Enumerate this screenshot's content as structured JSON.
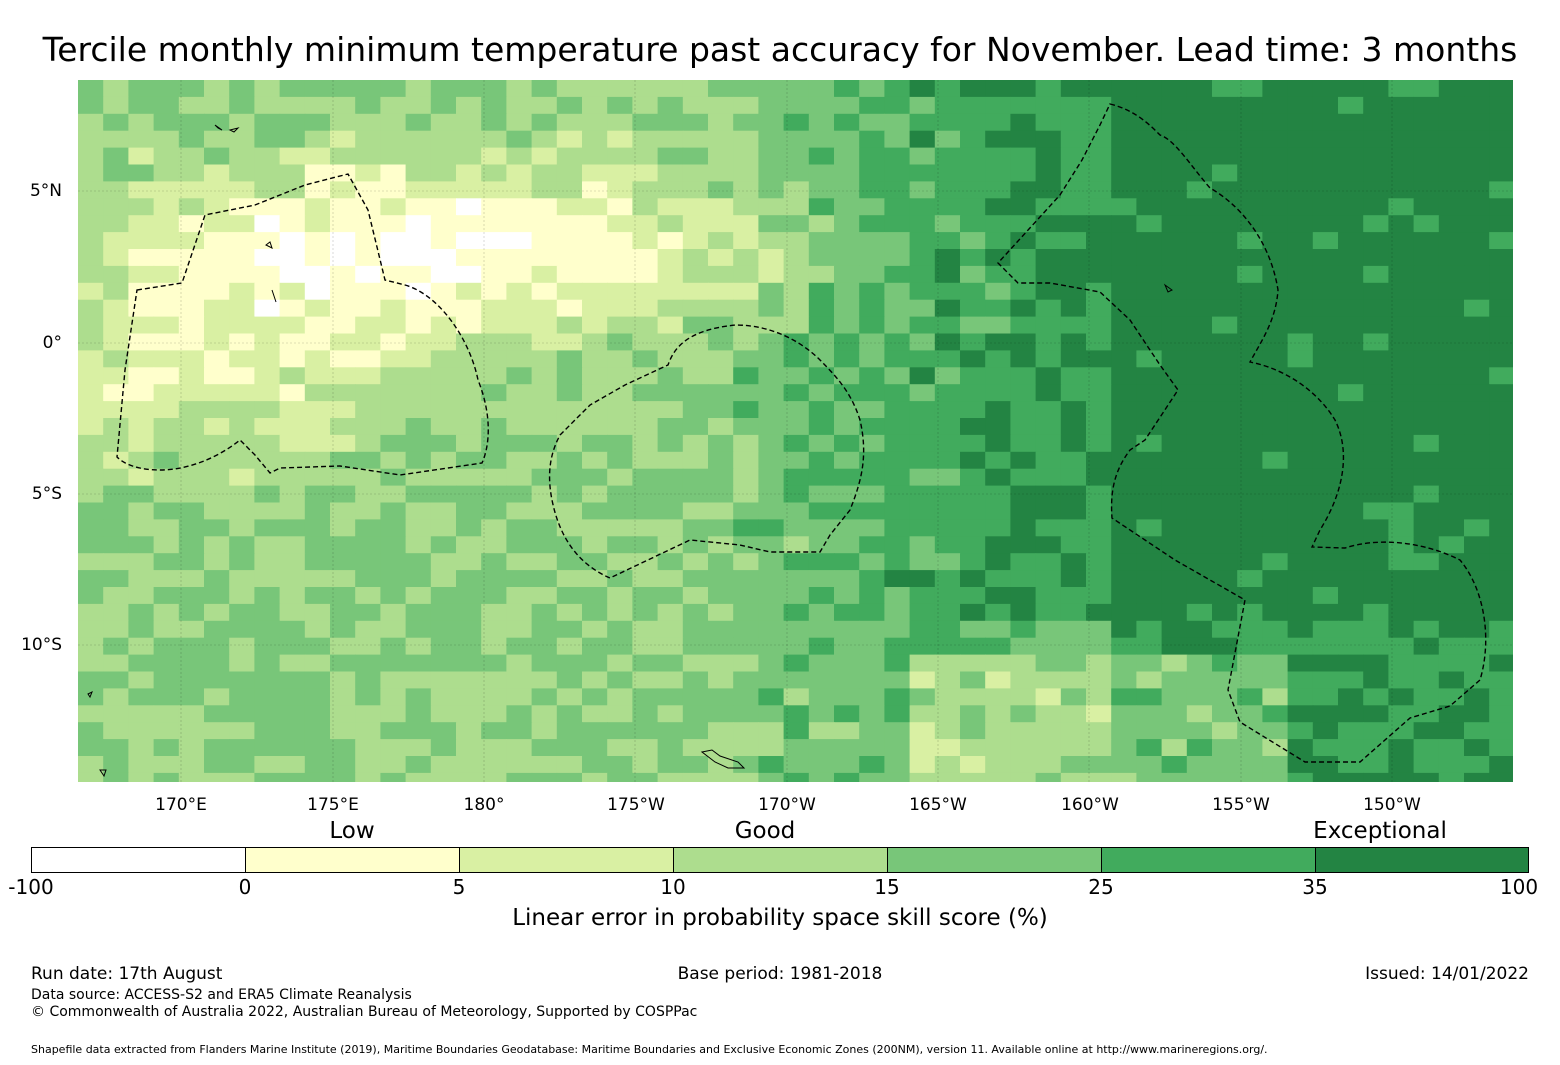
{
  "title": "Tercile monthly minimum temperature past accuracy for November. Lead time: 3 months",
  "map": {
    "lat_labels": [
      "5°N",
      "0°",
      "5°S",
      "10°S"
    ],
    "lon_labels": [
      "170°E",
      "175°E",
      "180°",
      "175°W",
      "170°W",
      "165°W",
      "160°W",
      "155°W",
      "150°W"
    ],
    "lon_range": [
      "166.6°E",
      "145.3°W"
    ],
    "lat_range": [
      "8.7°N",
      "14.5°S"
    ]
  },
  "legend": {
    "category_labels": [
      "Low",
      "Good",
      "Exceptional"
    ],
    "ticks": [
      "-100",
      "0",
      "5",
      "10",
      "15",
      "25",
      "35",
      "100"
    ],
    "colors": [
      "#ffffff",
      "#ffffcc",
      "#d9f0a3",
      "#addd8e",
      "#78c679",
      "#41ab5d",
      "#238443"
    ],
    "label": "Linear error in probability space skill score (%)"
  },
  "footer": {
    "run_date": "Run date: 17th August",
    "base_period": "Base period: 1981-2018",
    "issued": "Issued: 14/01/2022",
    "data_source": "Data source: ACCESS-S2 and ERA5 Climate Reanalysis",
    "copyright": "© Commonwealth of Australia 2022, Australian Bureau of Meteorology, Supported by COSPPac",
    "shapefile": "Shapefile data extracted from Flanders Marine Institute (2019), Maritime Boundaries Geodatabase: Maritime Boundaries and Exclusive Economic Zones (200NM), version 11. Available online at http://www.marineregions.org/."
  }
}
